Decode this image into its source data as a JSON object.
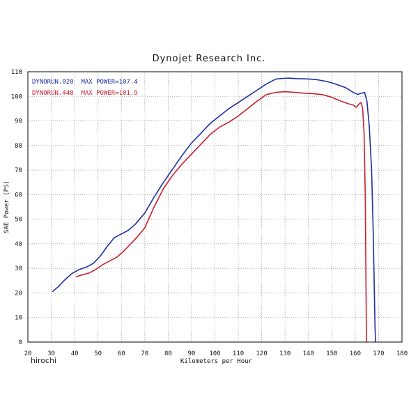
{
  "chart_data": {
    "type": "line",
    "title": "Dynojet Research Inc.",
    "xlabel": "Kilometers per Hour",
    "ylabel": "SAE Power (PS)",
    "xlim": [
      20,
      180
    ],
    "ylim": [
      0,
      110
    ],
    "xticks": [
      20,
      30,
      40,
      50,
      60,
      70,
      80,
      90,
      100,
      110,
      120,
      130,
      140,
      150,
      160,
      170,
      180
    ],
    "yticks": [
      0,
      10,
      20,
      30,
      40,
      50,
      60,
      70,
      80,
      90,
      100,
      110
    ],
    "grid": true,
    "legend_position": "top-left",
    "series": [
      {
        "name": "DYNORUN.020  MAX POWER=107.4",
        "color": "#1f2ea0",
        "x": [
          30.5,
          33,
          36,
          39,
          42,
          45,
          48,
          51,
          54,
          57,
          60,
          63,
          66,
          70,
          74,
          78,
          82,
          86,
          90,
          94,
          98,
          102,
          106,
          110,
          114,
          118,
          122,
          126,
          129,
          132,
          135,
          138,
          141,
          144,
          147,
          150,
          153,
          156,
          159,
          161,
          162.5,
          164,
          165,
          166,
          167,
          167.7,
          168.2,
          168.5,
          168.7
        ],
        "y": [
          20.5,
          22.5,
          25.5,
          28,
          29.5,
          30.5,
          32,
          35,
          39,
          42.5,
          44,
          45.5,
          48,
          52.5,
          59,
          65,
          70.5,
          76,
          81,
          85,
          89,
          92,
          95,
          97.5,
          100,
          102.5,
          105,
          107,
          107.3,
          107.4,
          107.2,
          107.1,
          107,
          106.7,
          106.2,
          105.5,
          104.5,
          103.5,
          101.7,
          100.8,
          101.2,
          101.6,
          98,
          88,
          70,
          45,
          20,
          5,
          0
        ]
      },
      {
        "name": "DYNORUN.448  MAX POWER=101.9",
        "color": "#c8202e",
        "x": [
          40.5,
          43,
          46,
          49,
          52,
          55,
          58,
          61,
          64,
          67,
          70,
          74,
          78,
          82,
          86,
          90,
          94,
          98,
          102,
          106,
          110,
          114,
          118,
          122,
          126,
          130,
          134,
          138,
          142,
          146,
          150,
          154,
          157,
          159,
          160.5,
          161.5,
          162.5,
          163.2,
          163.8,
          164.3,
          164.6,
          164.8
        ],
        "y": [
          26.5,
          27.3,
          28,
          29.5,
          31.5,
          33,
          34.5,
          37,
          40,
          43,
          46.5,
          55,
          62.5,
          68,
          72.5,
          76.5,
          80.5,
          84.5,
          87.5,
          89.5,
          92,
          95,
          98,
          100.7,
          101.6,
          101.9,
          101.6,
          101.3,
          101.1,
          100.7,
          99.6,
          98,
          97,
          96.5,
          95.5,
          96.8,
          97.5,
          95,
          85,
          60,
          25,
          0
        ]
      }
    ],
    "credit": "hirochi"
  }
}
